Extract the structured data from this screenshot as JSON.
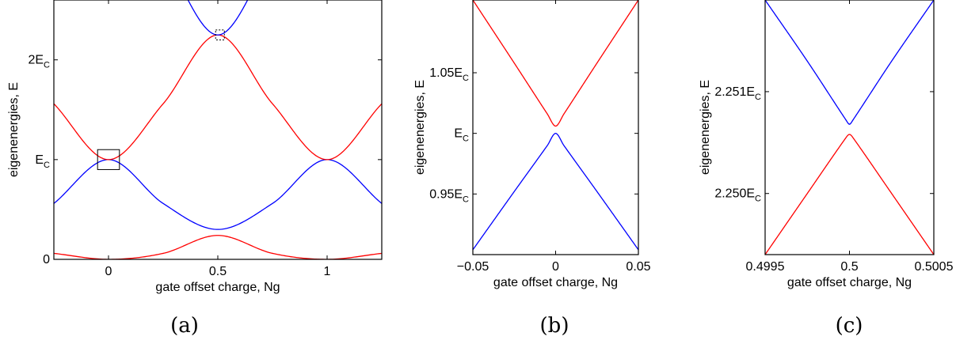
{
  "colors": {
    "upper": "#ff0000",
    "lower": "#0000ff"
  },
  "chart_data": [
    {
      "type": "line",
      "panel": "(a)",
      "caption": "(a)",
      "xlabel": "gate offset charge, Ng",
      "ylabel": "eigenenergies, E",
      "xlim": [
        -0.25,
        1.25
      ],
      "ylim": [
        0,
        2.6
      ],
      "xticks": [
        {
          "v": 0,
          "label": "0"
        },
        {
          "v": 0.5,
          "label": "0.5"
        },
        {
          "v": 1,
          "label": "1"
        }
      ],
      "yticks": [
        {
          "v": 0,
          "label": "0",
          "sub": ""
        },
        {
          "v": 1,
          "label": "E",
          "sub": "C"
        },
        {
          "v": 2,
          "label": "2E",
          "sub": "C"
        }
      ],
      "grid": false,
      "series": [
        {
          "color": "red",
          "x": [
            -0.25,
            0,
            0.25,
            0.5,
            0.75,
            1,
            1.25
          ],
          "y": [
            0.06,
            0,
            0.06,
            0.24,
            0.06,
            0,
            0.06
          ]
        },
        {
          "color": "blue",
          "x": [
            -0.25,
            0,
            0.25,
            0.5,
            0.75,
            1,
            1.25
          ],
          "y": [
            0.56,
            1.0,
            0.56,
            0.3,
            0.56,
            1.0,
            0.56
          ]
        },
        {
          "color": "red",
          "x": [
            -0.25,
            0,
            0.25,
            0.5,
            0.75,
            1,
            1.25
          ],
          "y": [
            1.56,
            1.0,
            1.56,
            2.25,
            1.56,
            1.0,
            1.56
          ]
        },
        {
          "color": "blue",
          "x": [
            0.25,
            0.5,
            0.75
          ],
          "y": [
            3.06,
            2.25,
            3.06
          ]
        }
      ],
      "annotations": [
        {
          "shape": "rect-solid",
          "x": [
            -0.05,
            0.05
          ],
          "y": [
            0.9,
            1.1
          ]
        },
        {
          "shape": "rect-dotted",
          "x": [
            0.49,
            0.53
          ],
          "y": [
            2.2,
            2.3
          ]
        }
      ]
    },
    {
      "type": "line",
      "panel": "(b)",
      "caption": "(b)",
      "xlabel": "gate offset charge, Ng",
      "ylabel": "eigenenergies, E",
      "xlim": [
        -0.05,
        0.05
      ],
      "ylim": [
        0.9,
        1.11
      ],
      "xticks": [
        {
          "v": -0.05,
          "label": "−0.05"
        },
        {
          "v": 0,
          "label": "0"
        },
        {
          "v": 0.05,
          "label": "0.05"
        }
      ],
      "yticks": [
        {
          "v": 0.95,
          "label": "0.95E",
          "sub": "C"
        },
        {
          "v": 1,
          "label": "E",
          "sub": "C"
        },
        {
          "v": 1.05,
          "label": "1.05E",
          "sub": "C"
        }
      ],
      "grid": false,
      "series": [
        {
          "color": "blue",
          "x": [
            -0.05,
            -0.025,
            -0.005,
            0,
            0.005,
            0.025,
            0.05
          ],
          "y": [
            0.904,
            0.952,
            0.99,
            1.0,
            0.99,
            0.952,
            0.904
          ]
        },
        {
          "color": "red",
          "x": [
            -0.05,
            -0.025,
            -0.005,
            0,
            0.005,
            0.025,
            0.05
          ],
          "y": [
            1.11,
            1.058,
            1.016,
            1.006,
            1.016,
            1.058,
            1.11
          ]
        }
      ]
    },
    {
      "type": "line",
      "panel": "(c)",
      "caption": "(c)",
      "xlabel": "gate offset charge, Ng",
      "ylabel": "eigenenergies, E",
      "xlim": [
        0.4995,
        0.5005
      ],
      "ylim": [
        2.2494,
        2.2519
      ],
      "xticks": [
        {
          "v": 0.4995,
          "label": "0.4995"
        },
        {
          "v": 0.5,
          "label": "0.5"
        },
        {
          "v": 0.5005,
          "label": "0.5005"
        }
      ],
      "yticks": [
        {
          "v": 2.25,
          "label": "2.250E",
          "sub": "C"
        },
        {
          "v": 2.251,
          "label": "2.251E",
          "sub": "C"
        }
      ],
      "grid": false,
      "series": [
        {
          "color": "red",
          "x": [
            0.4995,
            0.49975,
            0.49998,
            0.5,
            0.50002,
            0.50025,
            0.5005
          ],
          "y": [
            2.2494,
            2.25,
            2.25055,
            2.25058,
            2.25055,
            2.25,
            2.2494
          ]
        },
        {
          "color": "blue",
          "x": [
            0.4995,
            0.49975,
            0.49998,
            0.5,
            0.50002,
            0.50025,
            0.5005
          ],
          "y": [
            2.2519,
            2.2513,
            2.25072,
            2.25068,
            2.25072,
            2.2513,
            2.2519
          ]
        }
      ]
    }
  ]
}
